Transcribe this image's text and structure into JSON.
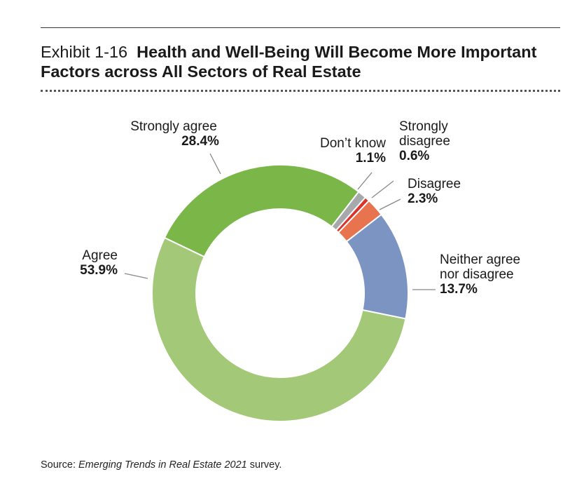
{
  "header": {
    "exhibit": "Exhibit 1-16",
    "title": "Health and Well-Being Will Become More Important Factors across All Sectors of Real Estate"
  },
  "chart_data": {
    "type": "pie",
    "donut": true,
    "title": "Health and Well-Being Will Become More Important Factors across All Sectors of Real Estate",
    "slices": [
      {
        "key": "strongly-agree",
        "label": "Strongly agree",
        "label_lines": [
          "Strongly agree"
        ],
        "value": 28.4,
        "value_label": "28.4%",
        "color": "#7ab648"
      },
      {
        "key": "dont-know",
        "label": "Don’t know",
        "label_lines": [
          "Don’t know"
        ],
        "value": 1.1,
        "value_label": "1.1%",
        "color": "#a6a8ab"
      },
      {
        "key": "strongly-disagree",
        "label": "Strongly disagree",
        "label_lines": [
          "Strongly",
          "disagree"
        ],
        "value": 0.6,
        "value_label": "0.6%",
        "color": "#d9342b"
      },
      {
        "key": "disagree",
        "label": "Disagree",
        "label_lines": [
          "Disagree"
        ],
        "value": 2.3,
        "value_label": "2.3%",
        "color": "#e8734f"
      },
      {
        "key": "neither",
        "label": "Neither agree nor disagree",
        "label_lines": [
          "Neither agree",
          "nor disagree"
        ],
        "value": 13.7,
        "value_label": "13.7%",
        "color": "#7b94c2"
      },
      {
        "key": "agree",
        "label": "Agree",
        "label_lines": [
          "Agree"
        ],
        "value": 53.9,
        "value_label": "53.9%",
        "color": "#a3c877"
      }
    ]
  },
  "footer": {
    "source_prefix": "Source: ",
    "source_title": "Emerging Trends in Real Estate 2021",
    "source_suffix": " survey."
  }
}
